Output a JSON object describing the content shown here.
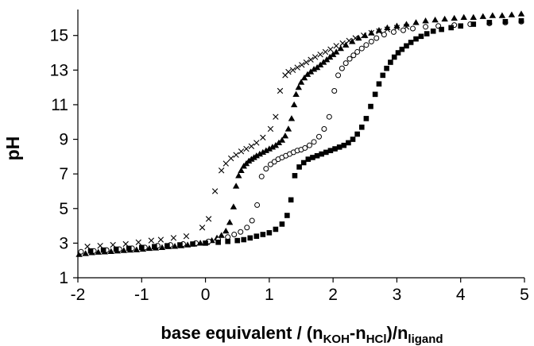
{
  "chart_data": {
    "type": "scatter",
    "xlabel": {
      "main": "base equivalent / (n",
      "sub1": "KOH",
      "mid": "-n",
      "sub2": "HCl",
      "mid2": ")/n",
      "sub3": "ligand"
    },
    "ylabel": "pH",
    "xlim": [
      -2,
      5
    ],
    "ylim": [
      1,
      16.5
    ],
    "xticks": [
      "-2",
      "-1",
      "0",
      "1",
      "2",
      "3",
      "4",
      "5"
    ],
    "yticks": [
      "1",
      "3",
      "5",
      "7",
      "9",
      "11",
      "13",
      "15"
    ],
    "grid": false,
    "legend": "none",
    "series": [
      {
        "marker": "cross",
        "color": "#000000",
        "points": [
          [
            -1.85,
            2.8
          ],
          [
            -1.65,
            2.85
          ],
          [
            -1.45,
            2.9
          ],
          [
            -1.25,
            2.95
          ],
          [
            -1.05,
            3.05
          ],
          [
            -0.85,
            3.15
          ],
          [
            -0.7,
            3.2
          ],
          [
            -0.5,
            3.3
          ],
          [
            -0.3,
            3.4
          ],
          [
            -0.05,
            3.9
          ],
          [
            0.05,
            4.4
          ],
          [
            0.15,
            6.0
          ],
          [
            0.25,
            7.2
          ],
          [
            0.32,
            7.6
          ],
          [
            0.4,
            7.9
          ],
          [
            0.48,
            8.1
          ],
          [
            0.56,
            8.3
          ],
          [
            0.64,
            8.45
          ],
          [
            0.72,
            8.6
          ],
          [
            0.8,
            8.8
          ],
          [
            0.9,
            9.1
          ],
          [
            1.02,
            9.6
          ],
          [
            1.1,
            10.3
          ],
          [
            1.17,
            11.8
          ],
          [
            1.25,
            12.7
          ],
          [
            1.3,
            12.9
          ],
          [
            1.37,
            13.0
          ],
          [
            1.44,
            13.15
          ],
          [
            1.51,
            13.3
          ],
          [
            1.58,
            13.45
          ],
          [
            1.65,
            13.6
          ],
          [
            1.72,
            13.75
          ],
          [
            1.8,
            13.9
          ],
          [
            1.88,
            14.05
          ],
          [
            1.96,
            14.2
          ],
          [
            2.05,
            14.4
          ],
          [
            2.15,
            14.55
          ],
          [
            2.25,
            14.7
          ],
          [
            2.35,
            14.85
          ],
          [
            2.48,
            15.0
          ],
          [
            2.6,
            15.15
          ],
          [
            2.72,
            15.25
          ],
          [
            2.85,
            15.35
          ],
          [
            3.0,
            15.45
          ],
          [
            3.15,
            15.5
          ]
        ]
      },
      {
        "marker": "filled-triangle",
        "color": "#000000",
        "points": [
          [
            -1.98,
            2.35
          ],
          [
            -1.88,
            2.4
          ],
          [
            -1.78,
            2.45
          ],
          [
            -1.68,
            2.48
          ],
          [
            -1.58,
            2.5
          ],
          [
            -1.48,
            2.52
          ],
          [
            -1.38,
            2.55
          ],
          [
            -1.28,
            2.58
          ],
          [
            -1.18,
            2.6
          ],
          [
            -1.08,
            2.62
          ],
          [
            -0.98,
            2.65
          ],
          [
            -0.88,
            2.7
          ],
          [
            -0.78,
            2.72
          ],
          [
            -0.68,
            2.75
          ],
          [
            -0.58,
            2.8
          ],
          [
            -0.48,
            2.82
          ],
          [
            -0.38,
            2.85
          ],
          [
            -0.28,
            2.9
          ],
          [
            -0.18,
            2.95
          ],
          [
            -0.08,
            3.0
          ],
          [
            0.02,
            3.05
          ],
          [
            0.1,
            3.15
          ],
          [
            0.18,
            3.3
          ],
          [
            0.25,
            3.45
          ],
          [
            0.32,
            3.7
          ],
          [
            0.38,
            4.2
          ],
          [
            0.44,
            5.1
          ],
          [
            0.48,
            6.3
          ],
          [
            0.52,
            6.9
          ],
          [
            0.56,
            7.2
          ],
          [
            0.6,
            7.45
          ],
          [
            0.64,
            7.6
          ],
          [
            0.68,
            7.75
          ],
          [
            0.72,
            7.85
          ],
          [
            0.76,
            7.95
          ],
          [
            0.8,
            8.05
          ],
          [
            0.85,
            8.15
          ],
          [
            0.9,
            8.25
          ],
          [
            0.95,
            8.35
          ],
          [
            1.0,
            8.45
          ],
          [
            1.05,
            8.55
          ],
          [
            1.1,
            8.65
          ],
          [
            1.15,
            8.8
          ],
          [
            1.2,
            8.95
          ],
          [
            1.25,
            9.2
          ],
          [
            1.3,
            9.6
          ],
          [
            1.35,
            10.2
          ],
          [
            1.39,
            11.0
          ],
          [
            1.42,
            11.6
          ],
          [
            1.46,
            12.0
          ],
          [
            1.5,
            12.3
          ],
          [
            1.55,
            12.55
          ],
          [
            1.6,
            12.75
          ],
          [
            1.65,
            12.9
          ],
          [
            1.7,
            13.05
          ],
          [
            1.75,
            13.15
          ],
          [
            1.8,
            13.3
          ],
          [
            1.85,
            13.45
          ],
          [
            1.9,
            13.6
          ],
          [
            1.95,
            13.75
          ],
          [
            2.0,
            13.9
          ],
          [
            2.05,
            14.05
          ],
          [
            2.12,
            14.25
          ],
          [
            2.2,
            14.45
          ],
          [
            2.3,
            14.65
          ],
          [
            2.4,
            14.85
          ],
          [
            2.5,
            15.0
          ],
          [
            2.6,
            15.15
          ],
          [
            2.72,
            15.3
          ],
          [
            2.85,
            15.45
          ],
          [
            3.0,
            15.55
          ],
          [
            3.15,
            15.65
          ],
          [
            3.3,
            15.75
          ],
          [
            3.45,
            15.85
          ],
          [
            3.6,
            15.9
          ],
          [
            3.75,
            15.95
          ],
          [
            3.9,
            16.0
          ],
          [
            4.05,
            16.05
          ],
          [
            4.2,
            16.05
          ],
          [
            4.35,
            16.1
          ],
          [
            4.5,
            16.15
          ],
          [
            4.65,
            16.15
          ],
          [
            4.8,
            16.2
          ],
          [
            4.95,
            16.25
          ]
        ]
      },
      {
        "marker": "open-circle",
        "color": "#000000",
        "points": [
          [
            -1.95,
            2.5
          ],
          [
            -1.75,
            2.55
          ],
          [
            -1.55,
            2.6
          ],
          [
            -1.35,
            2.65
          ],
          [
            -1.15,
            2.7
          ],
          [
            -0.95,
            2.75
          ],
          [
            -0.75,
            2.85
          ],
          [
            -0.55,
            2.9
          ],
          [
            -0.35,
            2.95
          ],
          [
            -0.15,
            3.0
          ],
          [
            0.05,
            3.1
          ],
          [
            0.2,
            3.2
          ],
          [
            0.35,
            3.35
          ],
          [
            0.45,
            3.5
          ],
          [
            0.55,
            3.65
          ],
          [
            0.65,
            3.9
          ],
          [
            0.73,
            4.3
          ],
          [
            0.81,
            5.2
          ],
          [
            0.88,
            6.85
          ],
          [
            0.95,
            7.3
          ],
          [
            1.02,
            7.55
          ],
          [
            1.08,
            7.7
          ],
          [
            1.14,
            7.85
          ],
          [
            1.2,
            7.95
          ],
          [
            1.26,
            8.05
          ],
          [
            1.32,
            8.15
          ],
          [
            1.38,
            8.25
          ],
          [
            1.44,
            8.35
          ],
          [
            1.5,
            8.4
          ],
          [
            1.56,
            8.5
          ],
          [
            1.63,
            8.65
          ],
          [
            1.7,
            8.85
          ],
          [
            1.78,
            9.15
          ],
          [
            1.86,
            9.6
          ],
          [
            1.94,
            10.3
          ],
          [
            2.02,
            11.8
          ],
          [
            2.08,
            12.7
          ],
          [
            2.14,
            13.1
          ],
          [
            2.2,
            13.4
          ],
          [
            2.26,
            13.65
          ],
          [
            2.32,
            13.85
          ],
          [
            2.38,
            14.05
          ],
          [
            2.45,
            14.25
          ],
          [
            2.52,
            14.45
          ],
          [
            2.6,
            14.65
          ],
          [
            2.68,
            14.85
          ],
          [
            2.8,
            15.05
          ],
          [
            2.95,
            15.2
          ],
          [
            3.1,
            15.3
          ],
          [
            3.25,
            15.4
          ],
          [
            3.45,
            15.5
          ],
          [
            3.65,
            15.55
          ],
          [
            3.9,
            15.6
          ],
          [
            4.15,
            15.65
          ],
          [
            4.45,
            15.7
          ],
          [
            4.7,
            15.75
          ],
          [
            4.95,
            15.8
          ]
        ]
      },
      {
        "marker": "filled-square",
        "color": "#000000",
        "points": [
          [
            -1.8,
            2.55
          ],
          [
            -1.6,
            2.6
          ],
          [
            -1.4,
            2.65
          ],
          [
            -1.2,
            2.7
          ],
          [
            -1.0,
            2.75
          ],
          [
            -0.8,
            2.8
          ],
          [
            -0.6,
            2.85
          ],
          [
            -0.4,
            2.9
          ],
          [
            -0.2,
            2.95
          ],
          [
            0.0,
            3.0
          ],
          [
            0.2,
            3.05
          ],
          [
            0.35,
            3.1
          ],
          [
            0.5,
            3.15
          ],
          [
            0.6,
            3.2
          ],
          [
            0.7,
            3.3
          ],
          [
            0.8,
            3.4
          ],
          [
            0.9,
            3.5
          ],
          [
            1.0,
            3.6
          ],
          [
            1.1,
            3.8
          ],
          [
            1.2,
            4.1
          ],
          [
            1.28,
            4.6
          ],
          [
            1.34,
            5.5
          ],
          [
            1.4,
            6.9
          ],
          [
            1.47,
            7.4
          ],
          [
            1.54,
            7.65
          ],
          [
            1.61,
            7.85
          ],
          [
            1.68,
            7.95
          ],
          [
            1.75,
            8.05
          ],
          [
            1.82,
            8.15
          ],
          [
            1.89,
            8.25
          ],
          [
            1.96,
            8.35
          ],
          [
            2.03,
            8.45
          ],
          [
            2.1,
            8.55
          ],
          [
            2.17,
            8.65
          ],
          [
            2.24,
            8.8
          ],
          [
            2.31,
            9.0
          ],
          [
            2.38,
            9.3
          ],
          [
            2.45,
            9.7
          ],
          [
            2.52,
            10.2
          ],
          [
            2.59,
            10.9
          ],
          [
            2.66,
            11.6
          ],
          [
            2.72,
            12.2
          ],
          [
            2.78,
            12.7
          ],
          [
            2.84,
            13.1
          ],
          [
            2.9,
            13.45
          ],
          [
            2.96,
            13.75
          ],
          [
            3.02,
            14.0
          ],
          [
            3.08,
            14.2
          ],
          [
            3.15,
            14.4
          ],
          [
            3.22,
            14.6
          ],
          [
            3.3,
            14.8
          ],
          [
            3.38,
            14.95
          ],
          [
            3.47,
            15.1
          ],
          [
            3.57,
            15.25
          ],
          [
            3.7,
            15.35
          ],
          [
            3.85,
            15.45
          ],
          [
            4.0,
            15.55
          ],
          [
            4.2,
            15.65
          ],
          [
            4.45,
            15.75
          ],
          [
            4.7,
            15.8
          ],
          [
            4.95,
            15.85
          ]
        ]
      }
    ]
  }
}
